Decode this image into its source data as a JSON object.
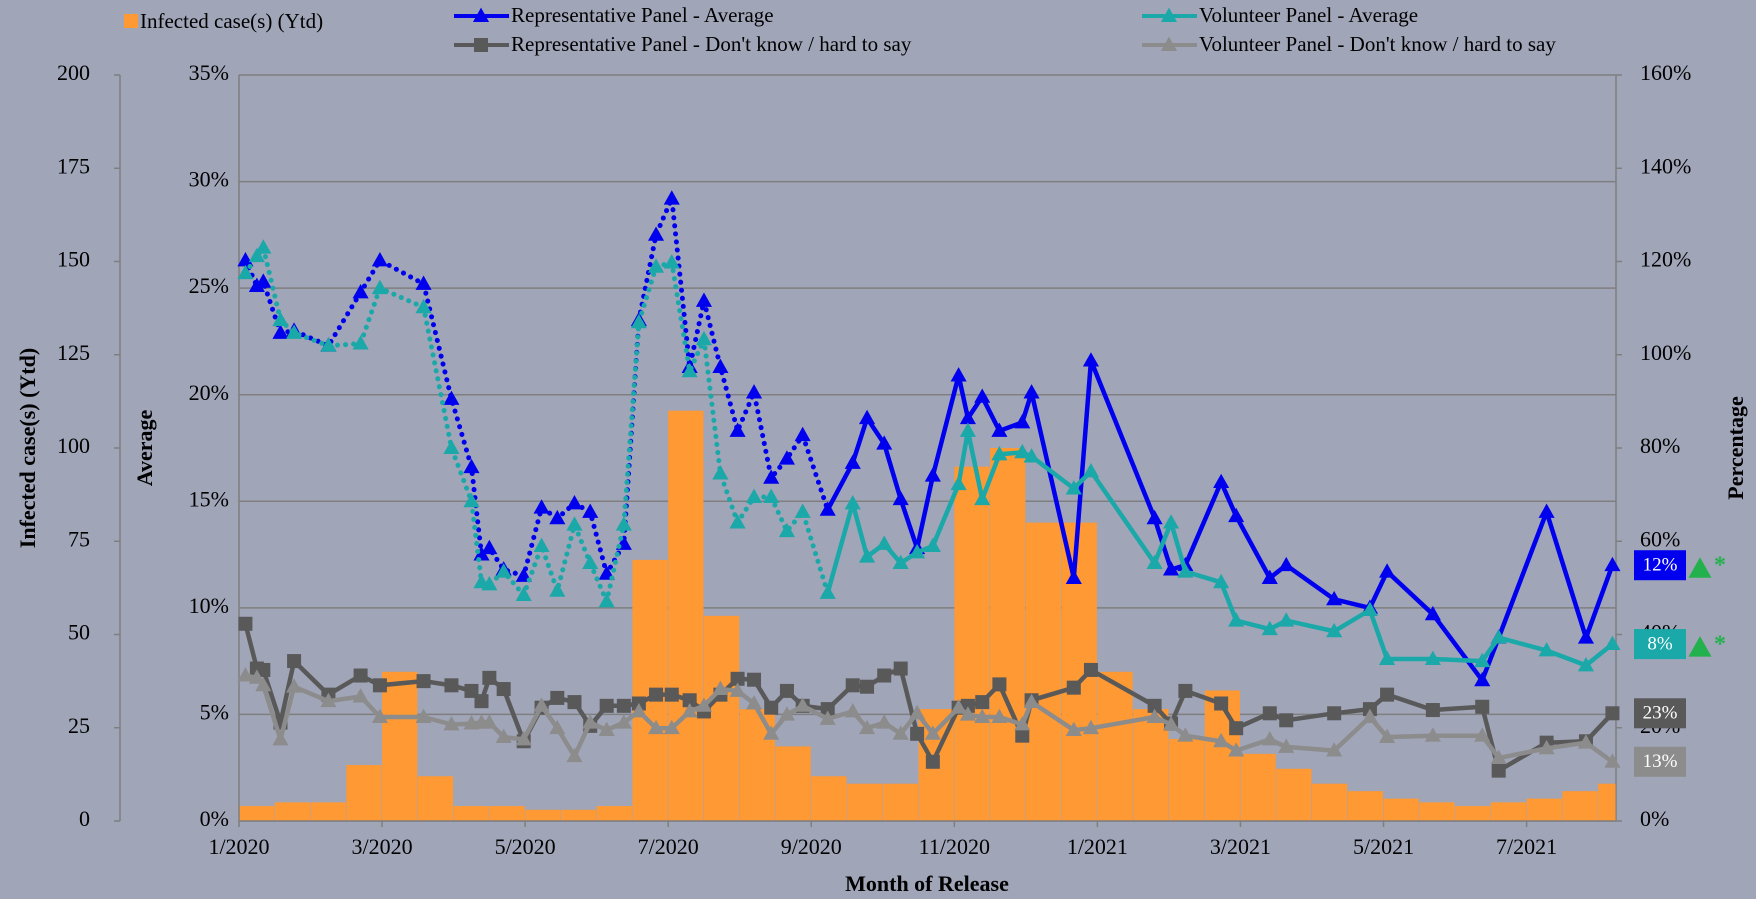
{
  "chart_data": {
    "type": "line",
    "x_label": "Month of Release",
    "y_label": "Average",
    "y2_label": "Percentage",
    "y3_label": "Infected case(s) (Ytd)",
    "grid": true,
    "xlim": [
      0,
      19.25
    ],
    "xticks": [
      {
        "value": 0,
        "label": "1/2020"
      },
      {
        "value": 2,
        "label": "3/2020"
      },
      {
        "value": 4,
        "label": "5/2020"
      },
      {
        "value": 6,
        "label": "7/2020"
      },
      {
        "value": 8,
        "label": "9/2020"
      },
      {
        "value": 10,
        "label": "11/2020"
      },
      {
        "value": 12,
        "label": "1/2021"
      },
      {
        "value": 14,
        "label": "3/2021"
      },
      {
        "value": 16,
        "label": "5/2021"
      },
      {
        "value": 18,
        "label": "7/2021"
      }
    ],
    "ylim": [
      0,
      35
    ],
    "yticks": [
      {
        "value": 0,
        "label": "0%"
      },
      {
        "value": 5,
        "label": "5%"
      },
      {
        "value": 10,
        "label": "10%"
      },
      {
        "value": 15,
        "label": "15%"
      },
      {
        "value": 20,
        "label": "20%"
      },
      {
        "value": 25,
        "label": "25%"
      },
      {
        "value": 30,
        "label": "30%"
      },
      {
        "value": 35,
        "label": "35%"
      }
    ],
    "y2lim": [
      0,
      160
    ],
    "y2ticks": [
      {
        "value": 0,
        "label": "0%"
      },
      {
        "value": 20,
        "label": "20%"
      },
      {
        "value": 40,
        "label": "40%"
      },
      {
        "value": 60,
        "label": "60%"
      },
      {
        "value": 80,
        "label": "80%"
      },
      {
        "value": 100,
        "label": "100%"
      },
      {
        "value": 120,
        "label": "120%"
      },
      {
        "value": 140,
        "label": "140%"
      },
      {
        "value": 160,
        "label": "160%"
      }
    ],
    "y3lim": [
      0,
      200
    ],
    "y3ticks": [
      0,
      25,
      50,
      75,
      100,
      125,
      150,
      175,
      200
    ],
    "bars": {
      "name": "Infected case(s) (Ytd)",
      "color": "#ff9933",
      "axis": "y3",
      "bins": [
        0,
        0.5,
        1,
        1.5,
        2,
        2.5,
        3,
        3.5,
        4,
        4.5,
        5,
        5.5,
        6,
        6.5,
        7,
        7.5,
        8,
        8.5,
        9,
        9.5,
        10,
        10.5,
        11,
        11.5,
        12,
        12.5,
        13,
        13.5,
        14,
        14.5,
        15,
        15.5,
        16,
        16.5,
        17,
        17.5,
        18,
        18.5,
        19,
        19.25
      ],
      "values": [
        4,
        5,
        5,
        15,
        40,
        12,
        4,
        4,
        3,
        3,
        4,
        70,
        110,
        55,
        30,
        20,
        12,
        10,
        10,
        30,
        95,
        100,
        80,
        80,
        40,
        30,
        22,
        35,
        18,
        14,
        10,
        8,
        6,
        5,
        4,
        5,
        6,
        8,
        10
      ]
    },
    "x": [
      0.09,
      0.25,
      0.34,
      0.58,
      0.77,
      1.25,
      1.7,
      1.97,
      2.58,
      2.97,
      3.25,
      3.39,
      3.5,
      3.7,
      3.98,
      4.23,
      4.45,
      4.69,
      4.91,
      5.14,
      5.38,
      5.59,
      5.83,
      6.05,
      6.3,
      6.5,
      6.73,
      6.97,
      7.2,
      7.44,
      7.66,
      7.88,
      8.23,
      8.58,
      8.78,
      9.02,
      9.25,
      9.48,
      9.7,
      10.06,
      10.19,
      10.39,
      10.63,
      10.95,
      11.08,
      11.67,
      11.91,
      12.8,
      13.03,
      13.23,
      13.73,
      13.94,
      14.41,
      14.64,
      15.31,
      15.81,
      16.05,
      16.69,
      17.38,
      17.61,
      18.28,
      18.83,
      19.2
    ],
    "series": [
      {
        "name": "Representative Panel - Average",
        "color": "#0000ee",
        "marker": "triangle",
        "axis": "y",
        "dotted_until": 8.23,
        "end_label": "12%",
        "flag": "*",
        "values": [
          26.3,
          25.1,
          25.3,
          22.9,
          23.0,
          22.3,
          24.8,
          26.3,
          25.2,
          19.8,
          16.6,
          12.5,
          12.8,
          11.8,
          11.5,
          14.7,
          14.2,
          14.9,
          14.5,
          11.6,
          13.0,
          23.5,
          27.5,
          29.2,
          21.3,
          24.4,
          21.3,
          18.3,
          20.1,
          16.1,
          17.0,
          18.1,
          14.6,
          16.8,
          18.9,
          17.7,
          15.1,
          12.8,
          16.2,
          20.9,
          18.9,
          19.9,
          18.3,
          18.7,
          20.1,
          11.4,
          21.6,
          14.2,
          11.8,
          12.0,
          15.9,
          14.3,
          11.4,
          12.0,
          10.4,
          10.0,
          11.7,
          9.7,
          6.6,
          8.6,
          14.5,
          8.6,
          12.0
        ]
      },
      {
        "name": "Volunteer Panel - Average",
        "color": "#1aa8a8",
        "marker": "triangle",
        "axis": "y",
        "dotted_until": 8.23,
        "end_label": "8%",
        "flag": "*",
        "values": [
          25.7,
          26.5,
          26.9,
          23.5,
          22.9,
          22.3,
          22.4,
          25.0,
          24.1,
          17.5,
          15.0,
          11.2,
          11.1,
          11.7,
          10.6,
          12.9,
          10.8,
          13.9,
          12.1,
          10.3,
          13.9,
          23.4,
          26.0,
          26.2,
          21.1,
          22.6,
          16.3,
          14.0,
          15.2,
          15.2,
          13.6,
          14.5,
          10.7,
          14.9,
          12.4,
          13.0,
          12.1,
          12.6,
          12.9,
          15.8,
          18.3,
          15.1,
          17.2,
          17.3,
          17.1,
          15.6,
          16.4,
          12.1,
          14.0,
          11.7,
          11.2,
          9.4,
          9.0,
          9.4,
          8.9,
          9.9,
          7.6,
          7.6,
          7.5,
          8.6,
          8.0,
          7.3,
          8.3
        ]
      },
      {
        "name": "Representative Panel - Don't know / hard to say",
        "color": "#595959",
        "marker": "square",
        "axis": "y2",
        "end_label": "23%",
        "values": [
          42.3,
          32.7,
          32.4,
          21.1,
          34.3,
          27.1,
          31.2,
          29.1,
          30.0,
          29.1,
          27.9,
          25.7,
          30.7,
          28.3,
          17.1,
          24.3,
          26.4,
          25.5,
          20.4,
          24.7,
          24.7,
          25.2,
          27.1,
          27.1,
          25.9,
          23.5,
          27.1,
          30.5,
          30.3,
          24.3,
          27.9,
          24.7,
          24.0,
          29.1,
          28.8,
          31.2,
          32.7,
          18.7,
          12.7,
          24.3,
          24.7,
          25.5,
          29.3,
          18.3,
          25.9,
          28.6,
          32.4,
          24.7,
          20.9,
          27.9,
          25.2,
          19.9,
          23.1,
          21.6,
          23.1,
          24.0,
          27.1,
          23.8,
          24.5,
          10.8,
          16.8,
          17.1,
          23.1
        ]
      },
      {
        "name": "Volunteer Panel - Don't know / hard to say",
        "color": "#8c8c8c",
        "marker": "triangle",
        "axis": "y2",
        "end_label": "13%",
        "values": [
          31.2,
          30.7,
          29.1,
          17.5,
          28.8,
          25.7,
          26.7,
          22.3,
          22.3,
          20.7,
          20.9,
          21.1,
          21.1,
          18.0,
          17.5,
          24.7,
          19.9,
          13.9,
          21.1,
          19.5,
          21.1,
          23.5,
          19.9,
          19.9,
          23.5,
          24.7,
          28.3,
          27.9,
          25.2,
          18.7,
          22.8,
          24.7,
          21.9,
          23.5,
          19.9,
          21.1,
          18.7,
          23.1,
          18.7,
          24.3,
          22.8,
          22.3,
          22.3,
          20.7,
          25.5,
          19.5,
          19.9,
          22.3,
          20.7,
          18.3,
          17.1,
          15.1,
          17.5,
          15.9,
          15.1,
          22.3,
          18.0,
          18.3,
          18.3,
          13.5,
          15.6,
          16.8,
          12.7
        ]
      }
    ]
  }
}
